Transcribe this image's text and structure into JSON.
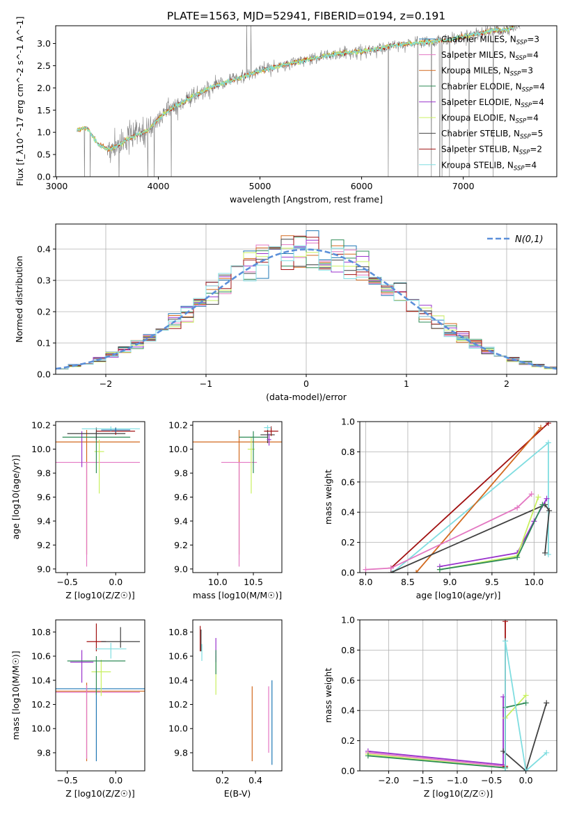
{
  "figure_title": "PLATE=1563, MJD=52941, FIBERID=0194, z=0.191",
  "models": [
    {
      "name": "Chabrier MILES",
      "nssp": "3",
      "color": "#1f77b4"
    },
    {
      "name": "Salpeter MILES",
      "nssp": "4",
      "color": "#e377c2"
    },
    {
      "name": "Kroupa MILES",
      "nssp": "3",
      "color": "#d2691e"
    },
    {
      "name": "Chabrier ELODIE",
      "nssp": "4",
      "color": "#2e8b57"
    },
    {
      "name": "Salpeter ELODIE",
      "nssp": "4",
      "color": "#9932cc"
    },
    {
      "name": "Kroupa ELODIE",
      "nssp": "4",
      "color": "#c8f060"
    },
    {
      "name": "Chabrier STELIB",
      "nssp": "5",
      "color": "#404040"
    },
    {
      "name": "Salpeter STELIB",
      "nssp": "2",
      "color": "#a01010"
    },
    {
      "name": "Kroupa STELIB",
      "nssp": "4",
      "color": "#7fdde0"
    }
  ],
  "chart_data": [
    {
      "id": "spectrum",
      "type": "line",
      "xlabel": "wavelength [Angstrom, rest frame]",
      "ylabel": "Flux [f_λ10^-17 erg cm^-2 s^-1 A^-1]",
      "xlim": [
        2990,
        7920
      ],
      "ylim": [
        0,
        3.4
      ],
      "xticks": [
        3000,
        4000,
        5000,
        6000,
        7000
      ],
      "yticks": [
        0.0,
        0.5,
        1.0,
        1.5,
        2.0,
        2.5,
        3.0
      ],
      "data_color": "#808080",
      "model_continuum": {
        "x": [
          3200,
          3300,
          3400,
          3500,
          3600,
          3700,
          3800,
          3900,
          4000,
          4100,
          4300,
          4500,
          4700,
          4900,
          5100,
          5300,
          5500,
          5700,
          5900,
          6100,
          6300,
          6500,
          6700,
          6900,
          7100,
          7300,
          7400,
          7500
        ],
        "y": [
          1.05,
          1.1,
          0.75,
          0.62,
          0.7,
          0.85,
          0.95,
          1.05,
          1.3,
          1.5,
          1.75,
          2.0,
          2.15,
          2.3,
          2.45,
          2.55,
          2.65,
          2.75,
          2.8,
          2.85,
          2.95,
          3.0,
          3.05,
          3.1,
          3.2,
          3.3,
          3.3,
          3.35
        ]
      }
    },
    {
      "id": "residuals",
      "type": "histogram",
      "xlabel": "(data-model)/error",
      "ylabel": "Normed distribution",
      "xlim": [
        -2.5,
        2.5
      ],
      "ylim": [
        0,
        0.48
      ],
      "xticks": [
        -2,
        -1,
        0,
        1,
        2
      ],
      "yticks": [
        0.0,
        0.1,
        0.2,
        0.3,
        0.4
      ],
      "legend": "N(0,1)",
      "gaussian_color": "#5b8fd9",
      "bins": [
        -2.5,
        -2.375,
        -2.25,
        -2.125,
        -2.0,
        -1.875,
        -1.75,
        -1.625,
        -1.5,
        -1.375,
        -1.25,
        -1.125,
        -1.0,
        -0.875,
        -0.75,
        -0.625,
        -0.5,
        -0.375,
        -0.25,
        -0.125,
        0.0,
        0.125,
        0.25,
        0.375,
        0.5,
        0.625,
        0.75,
        0.875,
        1.0,
        1.125,
        1.25,
        1.375,
        1.5,
        1.625,
        1.75,
        1.875,
        2.0,
        2.125,
        2.25,
        2.375,
        2.5
      ]
    },
    {
      "id": "age_vs_Z",
      "type": "errorbar",
      "xlabel": "Z [log10(Z/Z☉)]",
      "ylabel": "age [log10(age/yr)]",
      "xlim": [
        -0.62,
        0.3
      ],
      "ylim": [
        8.97,
        10.23
      ],
      "xticks": [
        -0.5,
        0.0
      ],
      "yticks": [
        9.0,
        9.2,
        9.4,
        9.6,
        9.8,
        10.0,
        10.2
      ]
    },
    {
      "id": "age_vs_mass",
      "type": "errorbar",
      "xlabel": "mass [log10(M/M☉)]",
      "ylabel": "",
      "xlim": [
        9.65,
        10.9
      ],
      "ylim": [
        8.97,
        10.23
      ],
      "xticks": [
        10.0,
        10.5
      ],
      "yticks": [
        9.0,
        9.2,
        9.4,
        9.6,
        9.8,
        10.0,
        10.2
      ]
    },
    {
      "id": "weight_vs_age",
      "type": "line",
      "xlabel": "age [log10(age/yr)]",
      "ylabel": "mass weight",
      "xlim": [
        7.93,
        10.27
      ],
      "ylim": [
        0,
        1
      ],
      "xticks": [
        8.0,
        8.5,
        9.0,
        9.5,
        10.0
      ],
      "yticks": [
        0.0,
        0.2,
        0.4,
        0.6,
        0.8,
        1.0
      ],
      "series": [
        {
          "model": 7,
          "x": [
            8.3,
            10.17
          ],
          "y": [
            0.03,
            0.99
          ]
        },
        {
          "model": 8,
          "x": [
            8.32,
            10.17,
            10.17
          ],
          "y": [
            0.0,
            0.86,
            0.12
          ]
        },
        {
          "model": 2,
          "x": [
            8.6,
            10.08
          ],
          "y": [
            0.0,
            0.96
          ]
        },
        {
          "model": 6,
          "x": [
            8.3,
            10.13,
            10.18,
            10.13
          ],
          "y": [
            0.0,
            0.45,
            0.41,
            0.13
          ]
        },
        {
          "model": 1,
          "x": [
            8.0,
            8.3,
            9.8,
            9.97
          ],
          "y": [
            0.02,
            0.03,
            0.43,
            0.52
          ]
        },
        {
          "model": 4,
          "x": [
            8.88,
            9.8,
            10.0,
            10.15
          ],
          "y": [
            0.04,
            0.13,
            0.34,
            0.49
          ]
        },
        {
          "model": 5,
          "x": [
            8.88,
            9.8,
            10.05
          ],
          "y": [
            0.02,
            0.11,
            0.5
          ]
        },
        {
          "model": 3,
          "x": [
            8.88,
            9.8,
            10.1
          ],
          "y": [
            0.02,
            0.1,
            0.45
          ]
        }
      ]
    },
    {
      "id": "mass_vs_Z",
      "type": "errorbar",
      "xlabel": "Z [log10(Z/Z☉)]",
      "ylabel": "mass [log10(M/M☉)]",
      "xlim": [
        -0.62,
        0.3
      ],
      "ylim": [
        9.65,
        10.9
      ],
      "xticks": [
        -0.5,
        0.0
      ],
      "yticks": [
        9.8,
        10.0,
        10.2,
        10.4,
        10.6,
        10.8
      ]
    },
    {
      "id": "mass_vs_EBV",
      "type": "errorbar",
      "xlabel": "E(B-V)",
      "ylabel": "",
      "xlim": [
        0.02,
        0.56
      ],
      "ylim": [
        9.65,
        10.9
      ],
      "xticks": [
        0.2,
        0.4
      ],
      "yticks": [
        9.8,
        10.0,
        10.2,
        10.4,
        10.6,
        10.8
      ]
    },
    {
      "id": "weight_vs_Z",
      "type": "line",
      "xlabel": "Z [log10(Z/Z☉)]",
      "ylabel": "mass weight",
      "xlim": [
        -2.42,
        0.45
      ],
      "ylim": [
        0,
        1
      ],
      "xticks": [
        -2.0,
        -1.5,
        -1.0,
        -0.5,
        0.0
      ],
      "yticks": [
        0.0,
        0.2,
        0.4,
        0.6,
        0.8,
        1.0
      ],
      "series": [
        {
          "model": 4,
          "x": [
            -2.3,
            -0.33,
            -0.33
          ],
          "y": [
            0.13,
            0.04,
            0.49
          ]
        },
        {
          "model": 1,
          "x": [
            -2.3,
            -0.3
          ],
          "y": [
            0.12,
            0.03
          ]
        },
        {
          "model": 5,
          "x": [
            -2.3,
            -0.3,
            -0.3,
            0.0
          ],
          "y": [
            0.11,
            0.02,
            0.35,
            0.5
          ]
        },
        {
          "model": 3,
          "x": [
            -2.3,
            -0.3,
            -0.3,
            0.0
          ],
          "y": [
            0.1,
            0.02,
            0.42,
            0.45
          ]
        },
        {
          "model": 6,
          "x": [
            -0.33,
            0.0,
            0.3
          ],
          "y": [
            0.13,
            0.0,
            0.45
          ]
        },
        {
          "model": 7,
          "x": [
            -0.3,
            -0.3
          ],
          "y": [
            0.03,
            0.99
          ]
        },
        {
          "model": 8,
          "x": [
            -0.3,
            -0.3,
            0.0,
            0.3
          ],
          "y": [
            0.0,
            0.86,
            0.0,
            0.12
          ]
        }
      ]
    }
  ]
}
